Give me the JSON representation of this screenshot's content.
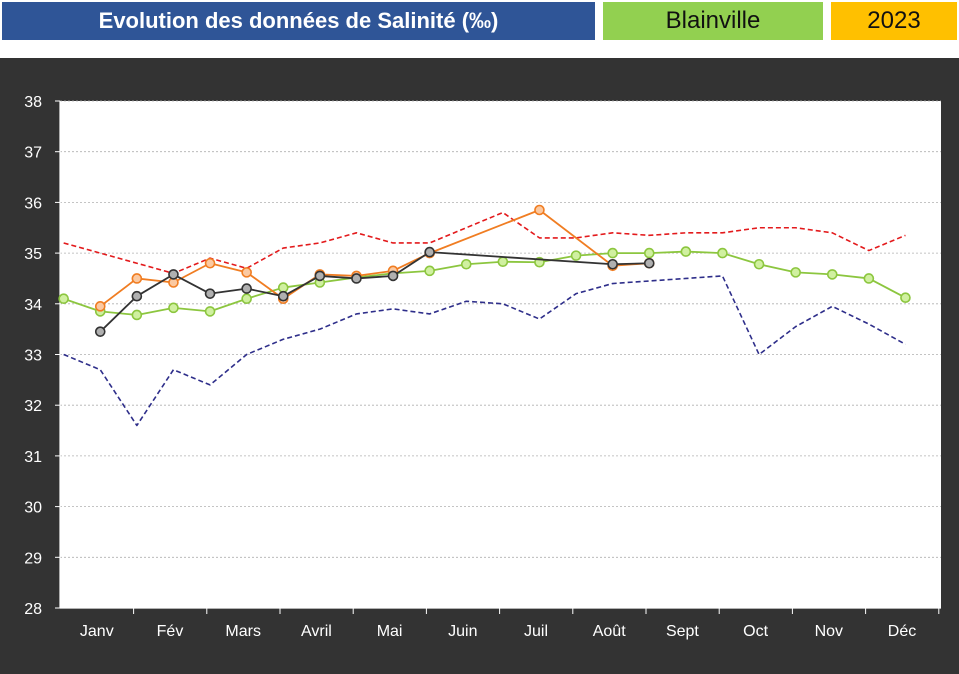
{
  "header": {
    "title": "Evolution des données de Salinité (‰)",
    "site": "Blainville",
    "year": "2023"
  },
  "colors": {
    "title_bg": "#2f5597",
    "site_bg": "#92d050",
    "year_bg": "#ffc000",
    "panel_bg": "#333333",
    "plot_bg": "#ffffff",
    "max_line": "#e31a1c",
    "min_line": "#2e2e8a",
    "mean_line": "#8cc63f",
    "orange_series": "#f07d22",
    "black_series": "#333333"
  },
  "chart_data": {
    "type": "line",
    "title": "Evolution des données de Salinité (‰)",
    "xlabel": "",
    "ylabel": "",
    "ylim": [
      28,
      38
    ],
    "yticks": [
      28,
      29,
      30,
      31,
      32,
      33,
      34,
      35,
      36,
      37,
      38
    ],
    "xlim": [
      1,
      12.5
    ],
    "categories": [
      "Janv",
      "Fév",
      "Mars",
      "Avril",
      "Mai",
      "Juin",
      "Juil",
      "Août",
      "Sept",
      "Oct",
      "Nov",
      "Déc"
    ],
    "grid": true,
    "legend": "none",
    "series": [
      {
        "style": "dashed",
        "color": "#e31a1c",
        "markers": false,
        "points": [
          [
            1.05,
            35.2
          ],
          [
            1.55,
            35.0
          ],
          [
            2.05,
            34.8
          ],
          [
            2.55,
            34.6
          ],
          [
            3.05,
            34.9
          ],
          [
            3.55,
            34.7
          ],
          [
            4.05,
            35.1
          ],
          [
            4.55,
            35.2
          ],
          [
            5.05,
            35.4
          ],
          [
            5.55,
            35.2
          ],
          [
            6.05,
            35.2
          ],
          [
            6.55,
            35.5
          ],
          [
            7.05,
            35.8
          ],
          [
            7.55,
            35.3
          ],
          [
            8.05,
            35.3
          ],
          [
            8.55,
            35.4
          ],
          [
            9.05,
            35.35
          ],
          [
            9.55,
            35.4
          ],
          [
            10.05,
            35.4
          ],
          [
            10.55,
            35.5
          ],
          [
            11.05,
            35.5
          ],
          [
            11.55,
            35.4
          ],
          [
            12.05,
            35.05
          ],
          [
            12.55,
            35.35
          ]
        ]
      },
      {
        "style": "dashed",
        "color": "#2e2e8a",
        "markers": false,
        "points": [
          [
            1.05,
            33.0
          ],
          [
            1.55,
            32.7
          ],
          [
            2.05,
            31.6
          ],
          [
            2.55,
            32.7
          ],
          [
            3.05,
            32.4
          ],
          [
            3.55,
            33.0
          ],
          [
            4.05,
            33.3
          ],
          [
            4.55,
            33.5
          ],
          [
            5.05,
            33.8
          ],
          [
            5.55,
            33.9
          ],
          [
            6.05,
            33.8
          ],
          [
            6.55,
            34.05
          ],
          [
            7.05,
            34.0
          ],
          [
            7.55,
            33.7
          ],
          [
            8.05,
            34.2
          ],
          [
            8.55,
            34.4
          ],
          [
            9.05,
            34.45
          ],
          [
            9.55,
            34.5
          ],
          [
            10.05,
            34.55
          ],
          [
            10.55,
            33.0
          ],
          [
            11.05,
            33.55
          ],
          [
            11.55,
            33.95
          ],
          [
            12.05,
            33.6
          ],
          [
            12.55,
            33.2
          ]
        ]
      },
      {
        "style": "solid",
        "color": "#8cc63f",
        "markers": true,
        "points": [
          [
            1.05,
            34.1
          ],
          [
            1.55,
            33.85
          ],
          [
            2.05,
            33.78
          ],
          [
            2.55,
            33.92
          ],
          [
            3.05,
            33.85
          ],
          [
            3.55,
            34.1
          ],
          [
            4.05,
            34.32
          ],
          [
            4.55,
            34.42
          ],
          [
            5.05,
            34.52
          ],
          [
            5.55,
            34.6
          ],
          [
            6.05,
            34.65
          ],
          [
            6.55,
            34.78
          ],
          [
            7.05,
            34.83
          ],
          [
            7.55,
            34.82
          ],
          [
            8.05,
            34.95
          ],
          [
            8.55,
            35.0
          ],
          [
            9.05,
            35.0
          ],
          [
            9.55,
            35.03
          ],
          [
            10.05,
            35.0
          ],
          [
            10.55,
            34.78
          ],
          [
            11.05,
            34.62
          ],
          [
            11.55,
            34.58
          ],
          [
            12.05,
            34.5
          ],
          [
            12.55,
            34.12
          ]
        ]
      },
      {
        "style": "solid",
        "color": "#f07d22",
        "markers": true,
        "points": [
          [
            1.55,
            33.95
          ],
          [
            2.05,
            34.5
          ],
          [
            2.55,
            34.42
          ],
          [
            3.05,
            34.8
          ],
          [
            3.55,
            34.62
          ],
          [
            4.05,
            34.1
          ],
          [
            4.55,
            34.58
          ],
          [
            5.05,
            34.55
          ],
          [
            5.55,
            34.65
          ],
          [
            6.05,
            35.0
          ],
          [
            7.55,
            35.85
          ],
          [
            8.55,
            34.75
          ],
          [
            9.05,
            34.8
          ]
        ]
      },
      {
        "style": "solid",
        "color": "#333333",
        "markers": true,
        "points": [
          [
            1.55,
            33.45
          ],
          [
            2.05,
            34.15
          ],
          [
            2.55,
            34.58
          ],
          [
            3.05,
            34.2
          ],
          [
            3.55,
            34.3
          ],
          [
            4.05,
            34.15
          ],
          [
            4.55,
            34.55
          ],
          [
            5.05,
            34.5
          ],
          [
            5.55,
            34.55
          ],
          [
            6.05,
            35.02
          ],
          [
            8.55,
            34.78
          ],
          [
            9.05,
            34.8
          ]
        ]
      }
    ]
  }
}
